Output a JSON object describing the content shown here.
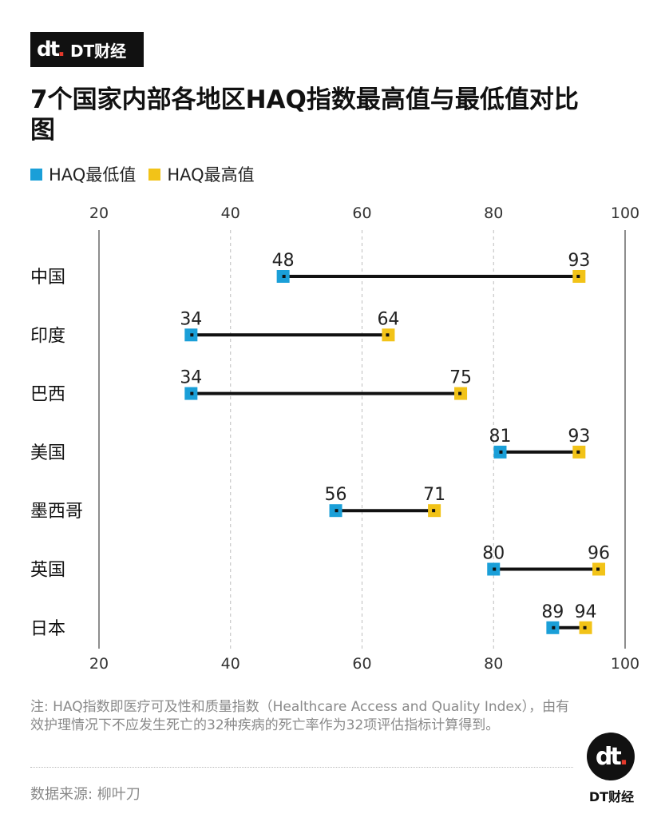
{
  "brand": {
    "mark": "dt",
    "name": "DT财经"
  },
  "title": "7个国家内部各地区HAQ指数最高值与最低值对比图",
  "legend": {
    "min_label": "HAQ最低值",
    "max_label": "HAQ最高值",
    "min_color": "#1a9fd8",
    "max_color": "#f2c318"
  },
  "chart_data": {
    "type": "dumbbell",
    "categories": [
      "中国",
      "印度",
      "巴西",
      "美国",
      "墨西哥",
      "英国",
      "日本"
    ],
    "series": [
      {
        "name": "HAQ最低值",
        "values": [
          48,
          34,
          34,
          81,
          56,
          80,
          89
        ]
      },
      {
        "name": "HAQ最高值",
        "values": [
          93,
          64,
          75,
          93,
          71,
          96,
          94
        ]
      }
    ],
    "xticks": [
      20,
      40,
      60,
      80,
      100
    ],
    "xlim": [
      20,
      100
    ],
    "grid": true,
    "gridStyle": "dashed",
    "legend_position": "top-left"
  },
  "note": "注: HAQ指数即医疗可及性和质量指数（Healthcare Access and Quality Index），由有效护理情况下不应发生死亡的32种疾病的死亡率作为32项评估指标计算得到。",
  "source": "数据来源: 柳叶刀",
  "footer_logo": {
    "mark": "dt",
    "name": "DT财经"
  }
}
